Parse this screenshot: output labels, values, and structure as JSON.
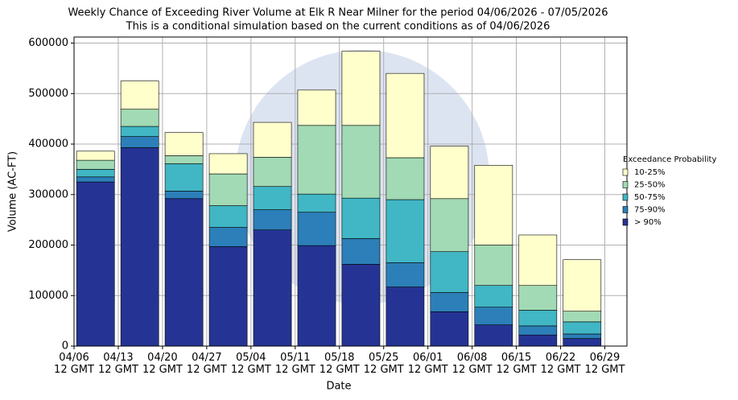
{
  "chart_data": {
    "type": "stacked_bar",
    "title": "Weekly Chance of Exceeding River Volume at Elk R Near Milner for the period 04/06/2026 - 07/05/2026",
    "subtitle": "This is a conditional simulation based on the current conditions as of 04/06/2026",
    "x_label": "Date",
    "y_label": "Volume (AC-FT)",
    "legend_title": "Exceedance Probability",
    "legend": "right",
    "x": [
      0,
      7,
      14,
      21,
      28,
      35,
      42,
      49,
      56,
      63,
      70,
      77
    ],
    "xlim": [
      0,
      87.5
    ],
    "xticks": [
      {
        "value": 0,
        "label": "04/06\n12 GMT"
      },
      {
        "value": 7,
        "label": "04/13\n12 GMT"
      },
      {
        "value": 14,
        "label": "04/20\n12 GMT"
      },
      {
        "value": 21,
        "label": "04/27\n12 GMT"
      },
      {
        "value": 28,
        "label": "05/04\n12 GMT"
      },
      {
        "value": 35,
        "label": "05/11\n12 GMT"
      },
      {
        "value": 42,
        "label": "05/18\n12 GMT"
      },
      {
        "value": 49,
        "label": "05/25\n12 GMT"
      },
      {
        "value": 56,
        "label": "06/01\n12 GMT"
      },
      {
        "value": 63,
        "label": "06/08\n12 GMT"
      },
      {
        "value": 70,
        "label": "06/15\n12 GMT"
      },
      {
        "value": 77,
        "label": "06/22\n12 GMT"
      },
      {
        "value": 84,
        "label": "06/29\n12 GMT"
      }
    ],
    "ylim": [
      0,
      612000
    ],
    "yticks": [
      0,
      100000,
      200000,
      300000,
      400000,
      500000,
      600000
    ],
    "grid": true,
    "series": [
      {
        "name": "> 90%",
        "color": "#253494",
        "values": [
          325000,
          393000,
          292000,
          197000,
          230000,
          199000,
          162000,
          117000,
          68000,
          42000,
          22000,
          15000
        ]
      },
      {
        "name": "75-90%",
        "color": "#2c7fb8",
        "values": [
          10000,
          22000,
          15000,
          38000,
          40000,
          66000,
          51000,
          48000,
          38000,
          35000,
          18000,
          9000
        ]
      },
      {
        "name": "50-75%",
        "color": "#41b6c4",
        "values": [
          15000,
          20000,
          54000,
          43000,
          46000,
          36000,
          80000,
          125000,
          81000,
          43000,
          31000,
          24000
        ]
      },
      {
        "name": "25-50%",
        "color": "#a1dab4",
        "values": [
          18000,
          34000,
          16000,
          63000,
          58000,
          136000,
          144000,
          83000,
          105000,
          80000,
          49000,
          21000
        ]
      },
      {
        "name": "10-25%",
        "color": "#ffffcc",
        "values": [
          18000,
          56000,
          46000,
          40000,
          69000,
          70000,
          147000,
          167000,
          104000,
          158000,
          100000,
          102000
        ]
      }
    ]
  }
}
